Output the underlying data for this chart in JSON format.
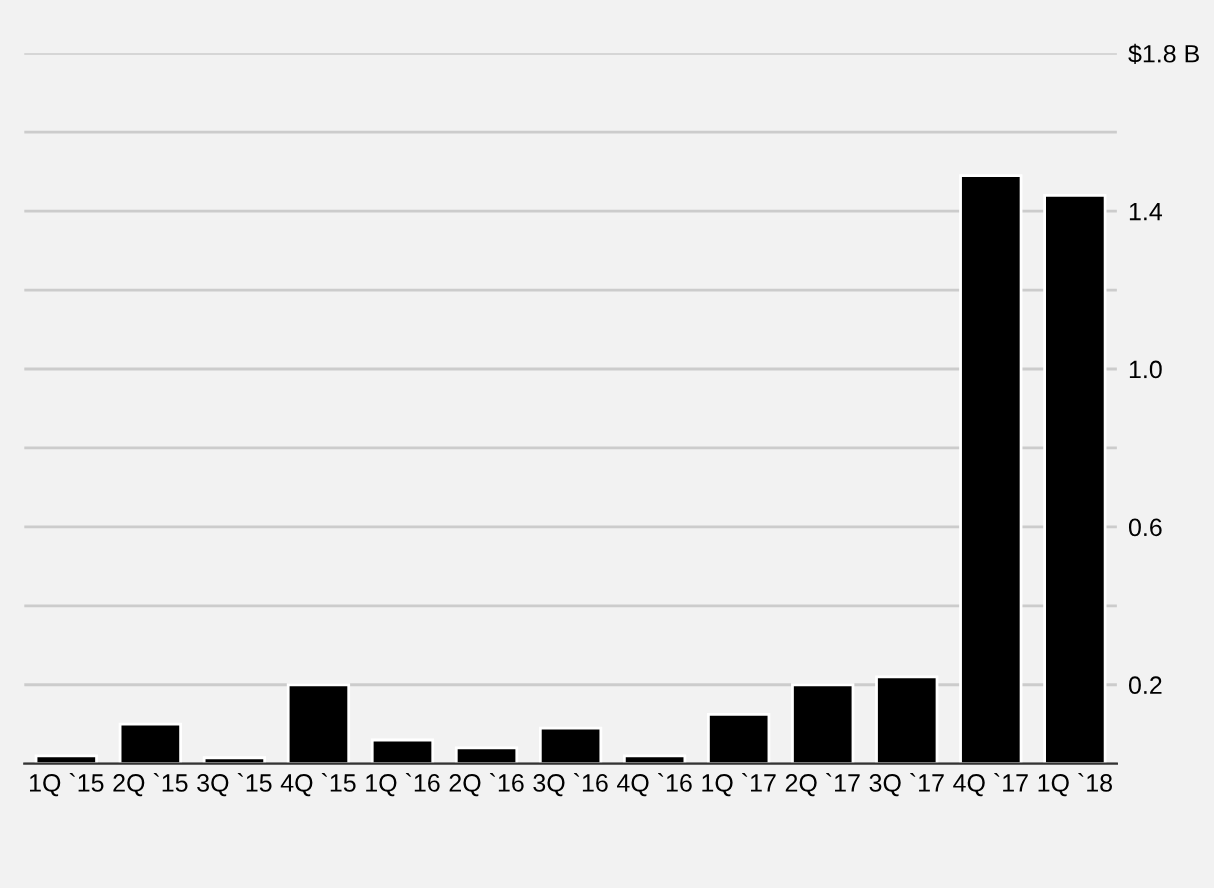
{
  "chart_data": {
    "type": "bar",
    "categories": [
      "1Q `15",
      "2Q `15",
      "3Q `15",
      "4Q `15",
      "1Q `16",
      "2Q `16",
      "3Q `16",
      "4Q `16",
      "1Q `17",
      "2Q `17",
      "3Q `17",
      "4Q `17",
      "1Q `18"
    ],
    "values": [
      0.02,
      0.1,
      0.015,
      0.2,
      0.06,
      0.04,
      0.09,
      0.02,
      0.125,
      0.2,
      0.22,
      1.49,
      1.44
    ],
    "color": "#000000",
    "ylim": [
      0,
      1.8
    ],
    "yticks": [
      {
        "value": 0,
        "label": null
      },
      0.2,
      {
        "value": 0.4,
        "label": null
      },
      0.6,
      {
        "value": 0.8,
        "label": null
      },
      {
        "value": 1.0,
        "label": "1.0"
      },
      {
        "value": 1.2,
        "label": null
      },
      1.4,
      {
        "value": 1.6,
        "label": null
      },
      {
        "value": 1.8,
        "label": "$1.8 B"
      }
    ],
    "grid": "y"
  }
}
